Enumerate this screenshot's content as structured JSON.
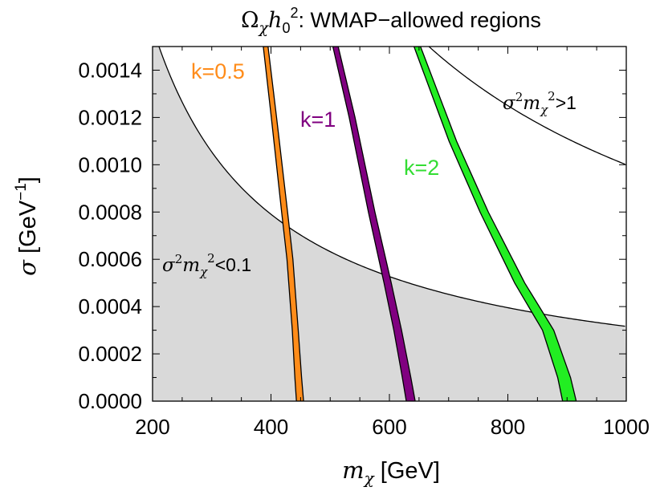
{
  "chart_data": {
    "type": "area",
    "title": {
      "omega": "Ω",
      "chi": "χ",
      "h": "h",
      "zero": "0",
      "two": "2",
      "rest": ": WMAP−allowed regions"
    },
    "xlabel": {
      "m": "m",
      "chi": "χ",
      "unit": " [GeV]"
    },
    "ylabel": {
      "sigma": "σ",
      "unit_open": " [GeV",
      "exp": "−1",
      "unit_close": "]"
    },
    "xlim": [
      200,
      1000
    ],
    "ylim": [
      0,
      0.0015
    ],
    "x_ticks": [
      "200",
      "400",
      "600",
      "800",
      "1000"
    ],
    "y_ticks": [
      "0.0000",
      "0.0002",
      "0.0004",
      "0.0006",
      "0.0008",
      "0.0010",
      "0.0012",
      "0.0014"
    ],
    "grid": false,
    "regions": [
      {
        "label": {
          "sigma": "σ",
          "two1": "2",
          "m": "m",
          "chi": "χ",
          "two2": "2",
          "rel": "<0.1"
        },
        "fill": "#d9d9d9",
        "boundary_constant": 0.1,
        "shaded": true
      },
      {
        "label": {
          "sigma": "σ",
          "two1": "2",
          "m": "m",
          "chi": "χ",
          "two2": "2",
          "rel": ">1"
        },
        "boundary_constant": 1,
        "shaded": false
      }
    ],
    "series": [
      {
        "name": "k=0.5",
        "color": "#ff8c1a",
        "center": [
          [
            391,
            0.0015
          ],
          [
            405,
            0.0012
          ],
          [
            423,
            0.0008
          ],
          [
            432,
            0.0006
          ],
          [
            441,
            0.0003
          ],
          [
            446,
            0.0001
          ],
          [
            449,
            0
          ]
        ],
        "width": [
          [
            0.0015,
            8
          ],
          [
            0.0008,
            10
          ],
          [
            0.0003,
            10
          ],
          [
            0,
            12
          ]
        ]
      },
      {
        "name": "k=1",
        "color": "#800080",
        "center": [
          [
            509,
            0.0015
          ],
          [
            537,
            0.0012
          ],
          [
            570,
            0.0008
          ],
          [
            597,
            0.0005
          ],
          [
            614,
            0.0003
          ],
          [
            629,
            0.0001
          ],
          [
            636,
            0
          ]
        ],
        "width": [
          [
            0.0015,
            9
          ],
          [
            0.0008,
            11
          ],
          [
            0.0003,
            13
          ],
          [
            0,
            15
          ]
        ]
      },
      {
        "name": "k=2",
        "color": "#22ee22",
        "center": [
          [
            647,
            0.0015
          ],
          [
            707,
            0.0011
          ],
          [
            760,
            0.0008
          ],
          [
            820,
            0.0005
          ],
          [
            868,
            0.0003
          ],
          [
            895,
            0.0001
          ],
          [
            904,
            0
          ]
        ],
        "width": [
          [
            0.0015,
            11
          ],
          [
            0.0008,
            14
          ],
          [
            0.0003,
            19
          ],
          [
            0,
            23
          ]
        ]
      }
    ]
  }
}
